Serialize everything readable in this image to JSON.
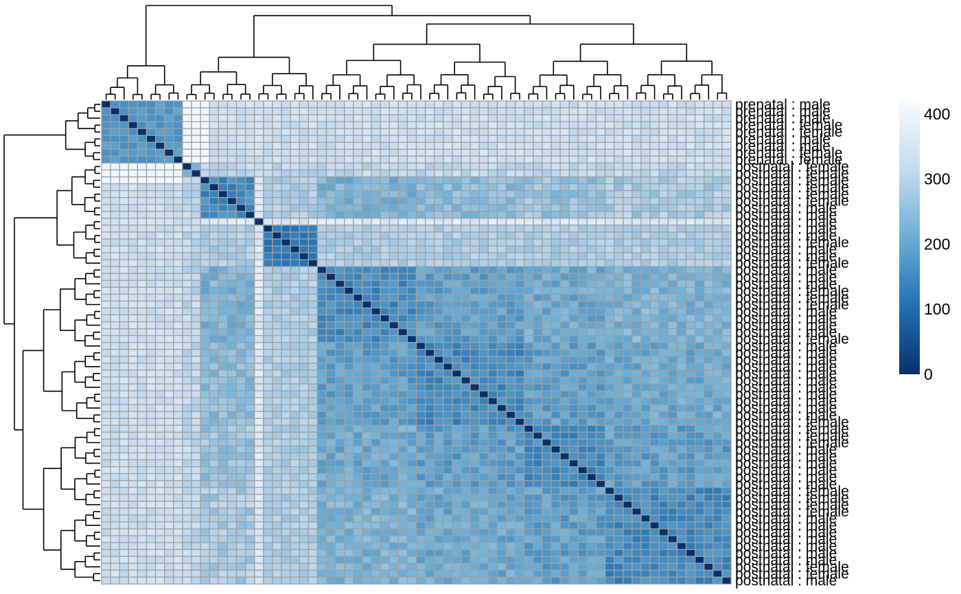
{
  "chart_data": {
    "type": "heatmap",
    "title": "",
    "xlabel": "",
    "ylabel": "",
    "matrix_size": 70,
    "groups": [
      {
        "name": "prenatal",
        "count": 9
      },
      {
        "name": "postnatal",
        "count": 61
      }
    ],
    "row_labels": [
      "prenatal : male",
      "prenatal : male",
      "prenatal : male",
      "prenatal : female",
      "prenatal : female",
      "prenatal : male",
      "prenatal : male",
      "prenatal : female",
      "prenatal : female",
      "postnatal : female",
      "postnatal : female",
      "postnatal : female",
      "postnatal : female",
      "postnatal : female",
      "postnatal : female",
      "postnatal : male",
      "postnatal : male",
      "postnatal : male",
      "postnatal : male",
      "postnatal : male",
      "postnatal : female",
      "postnatal : male",
      "postnatal : male",
      "postnatal : female",
      "postnatal : male",
      "postnatal : male",
      "postnatal : male",
      "postnatal : female",
      "postnatal : female",
      "postnatal : female",
      "postnatal : male",
      "postnatal : male",
      "postnatal : male",
      "postnatal : male",
      "postnatal : female",
      "postnatal : male",
      "postnatal : male",
      "postnatal : male",
      "postnatal : male",
      "postnatal : male",
      "postnatal : male",
      "postnatal : male",
      "postnatal : male",
      "postnatal : male",
      "postnatal : male",
      "postnatal : male",
      "postnatal : female",
      "postnatal : female",
      "postnatal : female",
      "postnatal : female",
      "postnatal : male",
      "postnatal : male",
      "postnatal : male",
      "postnatal : male",
      "postnatal : male",
      "postnatal : male",
      "postnatal : female",
      "postnatal : female",
      "postnatal : female",
      "postnatal : female",
      "postnatal : male",
      "postnatal : male",
      "postnatal : male",
      "postnatal : male",
      "postnatal : male",
      "postnatal : male",
      "postnatal : male",
      "postnatal : female",
      "postnatal : female",
      "postnatal : male"
    ],
    "colorbar": {
      "range": [
        0,
        420
      ],
      "ticks": [
        0,
        100,
        200,
        300,
        400
      ],
      "colors": [
        "#08306b",
        "#2171b5",
        "#6baed6",
        "#c6dbef",
        "#f7fbff"
      ]
    },
    "cell_border_color": "#a0a0a0",
    "dendrogram_color": "#000000"
  }
}
